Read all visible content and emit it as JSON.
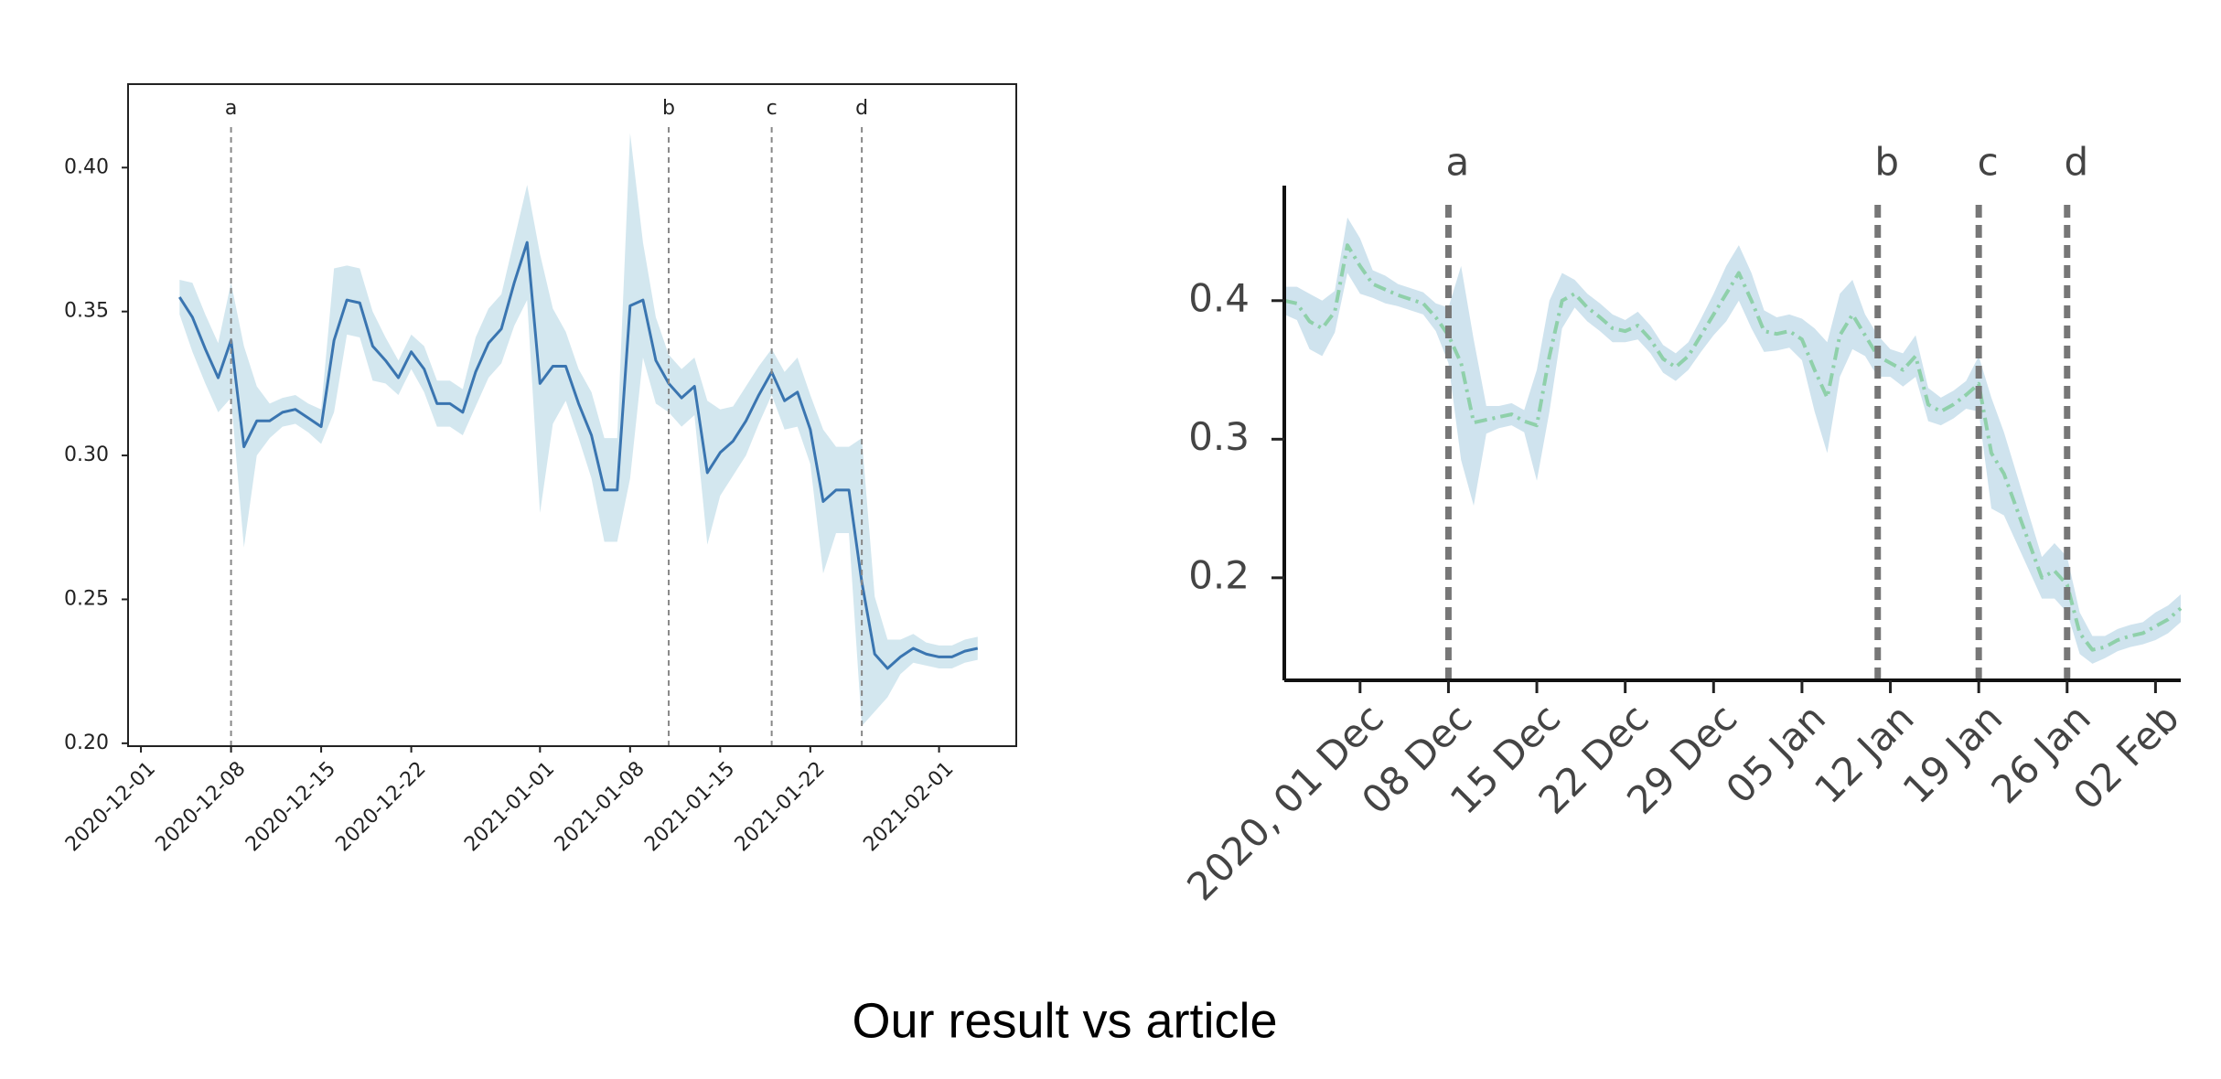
{
  "caption": "Our result vs article",
  "chart_data": [
    {
      "type": "line",
      "frame": "box",
      "line_style": "solid",
      "color": "#3a75b0",
      "band_color": "#d3e7ef",
      "x": [
        "2020-12-04",
        "2020-12-05",
        "2020-12-06",
        "2020-12-07",
        "2020-12-08",
        "2020-12-09",
        "2020-12-10",
        "2020-12-11",
        "2020-12-12",
        "2020-12-13",
        "2020-12-14",
        "2020-12-15",
        "2020-12-16",
        "2020-12-17",
        "2020-12-18",
        "2020-12-19",
        "2020-12-20",
        "2020-12-21",
        "2020-12-22",
        "2020-12-23",
        "2020-12-24",
        "2020-12-25",
        "2020-12-26",
        "2020-12-27",
        "2020-12-28",
        "2020-12-29",
        "2020-12-30",
        "2020-12-31",
        "2021-01-01",
        "2021-01-02",
        "2021-01-03",
        "2021-01-04",
        "2021-01-05",
        "2021-01-06",
        "2021-01-07",
        "2021-01-08",
        "2021-01-09",
        "2021-01-10",
        "2021-01-11",
        "2021-01-12",
        "2021-01-13",
        "2021-01-14",
        "2021-01-15",
        "2021-01-16",
        "2021-01-17",
        "2021-01-18",
        "2021-01-19",
        "2021-01-20",
        "2021-01-21",
        "2021-01-22",
        "2021-01-23",
        "2021-01-24",
        "2021-01-25",
        "2021-01-26",
        "2021-01-27",
        "2021-01-28",
        "2021-01-29",
        "2021-01-30",
        "2021-01-31",
        "2021-02-01",
        "2021-02-02",
        "2021-02-03",
        "2021-02-04"
      ],
      "values": [
        0.355,
        0.348,
        0.337,
        0.327,
        0.34,
        0.303,
        0.312,
        0.312,
        0.315,
        0.316,
        0.313,
        0.31,
        0.34,
        0.354,
        0.353,
        0.338,
        0.333,
        0.327,
        0.336,
        0.33,
        0.318,
        0.318,
        0.315,
        0.329,
        0.339,
        0.344,
        0.36,
        0.374,
        0.325,
        0.331,
        0.331,
        0.318,
        0.307,
        0.288,
        0.288,
        0.352,
        0.354,
        0.333,
        0.325,
        0.32,
        0.324,
        0.294,
        0.301,
        0.305,
        0.312,
        0.321,
        0.329,
        0.319,
        0.322,
        0.309,
        0.284,
        0.288,
        0.288,
        0.256,
        0.231,
        0.226,
        0.23,
        0.233,
        0.231,
        0.23,
        0.23,
        0.232,
        0.233
      ],
      "errors": [
        0.006,
        0.012,
        0.012,
        0.012,
        0.02,
        0.035,
        0.012,
        0.006,
        0.005,
        0.005,
        0.005,
        0.006,
        0.025,
        0.012,
        0.012,
        0.012,
        0.008,
        0.006,
        0.006,
        0.008,
        0.008,
        0.008,
        0.008,
        0.012,
        0.012,
        0.012,
        0.015,
        0.02,
        0.045,
        0.02,
        0.012,
        0.012,
        0.015,
        0.018,
        0.018,
        0.06,
        0.02,
        0.015,
        0.01,
        0.01,
        0.01,
        0.025,
        0.015,
        0.012,
        0.012,
        0.01,
        0.008,
        0.01,
        0.012,
        0.012,
        0.025,
        0.015,
        0.015,
        0.05,
        0.02,
        0.01,
        0.006,
        0.005,
        0.004,
        0.004,
        0.004,
        0.004,
        0.004
      ],
      "xlim": [
        "2020-11-30",
        "2021-02-07"
      ],
      "xticks": [
        "2020-12-01",
        "2020-12-08",
        "2020-12-15",
        "2020-12-22",
        "2021-01-01",
        "2021-01-08",
        "2021-01-15",
        "2021-01-22",
        "2021-02-01"
      ],
      "ylim": [
        0.199,
        0.429
      ],
      "yticks": [
        {
          "value": 0.2,
          "label": "0.20"
        },
        {
          "value": 0.25,
          "label": "0.25"
        },
        {
          "value": 0.3,
          "label": "0.30"
        },
        {
          "value": 0.35,
          "label": "0.35"
        },
        {
          "value": 0.4,
          "label": "0.40"
        }
      ],
      "vlines": [
        {
          "x": "2020-12-08",
          "label": "a"
        },
        {
          "x": "2021-01-11",
          "label": "b"
        },
        {
          "x": "2021-01-19",
          "label": "c"
        },
        {
          "x": "2021-01-26",
          "label": "d"
        }
      ]
    },
    {
      "type": "line",
      "frame": "axes",
      "line_style": "dash-dot",
      "color": "#8fd0aa",
      "band_color": "#cfe3ee",
      "x": [
        "2020-11-25",
        "2020-11-26",
        "2020-11-27",
        "2020-11-28",
        "2020-11-29",
        "2020-11-30",
        "2020-12-01",
        "2020-12-02",
        "2020-12-03",
        "2020-12-04",
        "2020-12-05",
        "2020-12-06",
        "2020-12-07",
        "2020-12-08",
        "2020-12-09",
        "2020-12-10",
        "2020-12-11",
        "2020-12-12",
        "2020-12-13",
        "2020-12-14",
        "2020-12-15",
        "2020-12-16",
        "2020-12-17",
        "2020-12-18",
        "2020-12-19",
        "2020-12-20",
        "2020-12-21",
        "2020-12-22",
        "2020-12-23",
        "2020-12-24",
        "2020-12-25",
        "2020-12-26",
        "2020-12-27",
        "2020-12-28",
        "2020-12-29",
        "2020-12-30",
        "2020-12-31",
        "2021-01-01",
        "2021-01-02",
        "2021-01-03",
        "2021-01-04",
        "2021-01-05",
        "2021-01-06",
        "2021-01-07",
        "2021-01-08",
        "2021-01-09",
        "2021-01-10",
        "2021-01-11",
        "2021-01-12",
        "2021-01-13",
        "2021-01-14",
        "2021-01-15",
        "2021-01-16",
        "2021-01-17",
        "2021-01-18",
        "2021-01-19",
        "2021-01-20",
        "2021-01-21",
        "2021-01-22",
        "2021-01-23",
        "2021-01-24",
        "2021-01-25",
        "2021-01-26",
        "2021-01-27",
        "2021-01-28",
        "2021-01-29",
        "2021-01-30",
        "2021-01-31",
        "2021-02-01",
        "2021-02-02",
        "2021-02-03",
        "2021-02-04"
      ],
      "values": [
        0.4,
        0.398,
        0.385,
        0.38,
        0.392,
        0.44,
        0.425,
        0.412,
        0.408,
        0.404,
        0.401,
        0.398,
        0.388,
        0.375,
        0.355,
        0.312,
        0.314,
        0.316,
        0.318,
        0.313,
        0.31,
        0.36,
        0.4,
        0.405,
        0.395,
        0.388,
        0.38,
        0.378,
        0.382,
        0.372,
        0.358,
        0.352,
        0.36,
        0.375,
        0.39,
        0.405,
        0.42,
        0.4,
        0.378,
        0.376,
        0.378,
        0.372,
        0.35,
        0.33,
        0.375,
        0.39,
        0.375,
        0.36,
        0.355,
        0.35,
        0.36,
        0.325,
        0.32,
        0.325,
        0.332,
        0.34,
        0.29,
        0.275,
        0.25,
        0.225,
        0.2,
        0.205,
        0.195,
        0.16,
        0.148,
        0.15,
        0.155,
        0.158,
        0.16,
        0.165,
        0.17,
        0.178
      ],
      "errors": [
        0.01,
        0.012,
        0.02,
        0.02,
        0.015,
        0.02,
        0.02,
        0.01,
        0.01,
        0.008,
        0.008,
        0.008,
        0.01,
        0.02,
        0.07,
        0.06,
        0.01,
        0.008,
        0.008,
        0.008,
        0.04,
        0.04,
        0.02,
        0.01,
        0.01,
        0.01,
        0.01,
        0.008,
        0.01,
        0.01,
        0.01,
        0.01,
        0.01,
        0.012,
        0.015,
        0.02,
        0.02,
        0.02,
        0.015,
        0.012,
        0.012,
        0.015,
        0.03,
        0.04,
        0.03,
        0.025,
        0.015,
        0.015,
        0.01,
        0.012,
        0.015,
        0.012,
        0.01,
        0.01,
        0.01,
        0.02,
        0.04,
        0.03,
        0.025,
        0.02,
        0.015,
        0.02,
        0.02,
        0.015,
        0.01,
        0.008,
        0.008,
        0.008,
        0.008,
        0.01,
        0.01,
        0.01
      ],
      "xlim": [
        "2020-11-25",
        "2021-02-04"
      ],
      "xticks": [
        {
          "value": "2020-12-01",
          "label": "2020, 01 Dec"
        },
        {
          "value": "2020-12-08",
          "label": "08 Dec"
        },
        {
          "value": "2020-12-15",
          "label": "15 Dec"
        },
        {
          "value": "2020-12-22",
          "label": "22 Dec"
        },
        {
          "value": "2020-12-29",
          "label": "29 Dec"
        },
        {
          "value": "2021-01-05",
          "label": "05 Jan"
        },
        {
          "value": "2021-01-12",
          "label": "12 Jan"
        },
        {
          "value": "2021-01-19",
          "label": "19 Jan"
        },
        {
          "value": "2021-01-26",
          "label": "26 Jan"
        },
        {
          "value": "2021-02-02",
          "label": "02 Feb"
        }
      ],
      "ylim": [
        0.126,
        0.483
      ],
      "yticks": [
        0.2,
        0.3,
        0.4
      ],
      "vlines": [
        {
          "x": "2020-12-08",
          "label": "a"
        },
        {
          "x": "2021-01-11",
          "label": "b"
        },
        {
          "x": "2021-01-19",
          "label": "c"
        },
        {
          "x": "2021-01-26",
          "label": "d"
        }
      ]
    }
  ]
}
